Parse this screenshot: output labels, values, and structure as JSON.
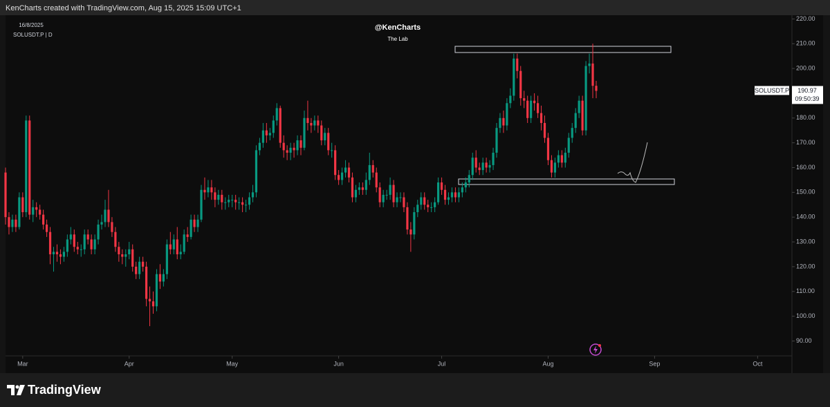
{
  "header": {
    "text": "KenCharts created with TradingView.com, Aug 15, 2025 15:09 UTC+1"
  },
  "footer": {
    "brand": "TradingView"
  },
  "chart_data": {
    "type": "candlestick",
    "title": "@KenCharts",
    "subtitle": "The Lab",
    "date": "16/8/2025",
    "symbol": "SOLUSDT.P | D",
    "price_tag": {
      "symbol": "SOLUSDT.P",
      "countdown": "09:50:39"
    },
    "up_color": "#089981",
    "down_color": "#f23645",
    "grid": false,
    "ylim": [
      84,
      221.5
    ],
    "yticks": [
      {
        "value": 90,
        "label": "90.00"
      },
      {
        "value": 100,
        "label": "100.00"
      },
      {
        "value": 110,
        "label": "110.00"
      },
      {
        "value": 120,
        "label": "120.00"
      },
      {
        "value": 130,
        "label": "130.00"
      },
      {
        "value": 140,
        "label": "140.00"
      },
      {
        "value": 150,
        "label": "150.00"
      },
      {
        "value": 160,
        "label": "160.00"
      },
      {
        "value": 170,
        "label": "170.00"
      },
      {
        "value": 180,
        "label": "180.00"
      },
      {
        "value": 190,
        "label": "190.00"
      },
      {
        "value": 200,
        "label": "200.00"
      },
      {
        "value": 210,
        "label": "210.00"
      },
      {
        "value": 220,
        "label": "220.00"
      }
    ],
    "xlim": [
      "2025-02-24",
      "2025-10-11"
    ],
    "xticks": [
      {
        "value": "2025-03-01",
        "label": "Mar"
      },
      {
        "value": "2025-04-01",
        "label": "Apr"
      },
      {
        "value": "2025-05-01",
        "label": "May"
      },
      {
        "value": "2025-06-01",
        "label": "Jun"
      },
      {
        "value": "2025-07-01",
        "label": "Jul"
      },
      {
        "value": "2025-08-01",
        "label": "Aug"
      },
      {
        "value": "2025-09-01",
        "label": "Sep"
      },
      {
        "value": "2025-10-01",
        "label": "Oct"
      }
    ],
    "x": [
      "2025-02-24",
      "2025-02-25",
      "2025-02-26",
      "2025-02-27",
      "2025-02-28",
      "2025-03-01",
      "2025-03-02",
      "2025-03-03",
      "2025-03-04",
      "2025-03-05",
      "2025-03-06",
      "2025-03-07",
      "2025-03-08",
      "2025-03-09",
      "2025-03-10",
      "2025-03-11",
      "2025-03-12",
      "2025-03-13",
      "2025-03-14",
      "2025-03-15",
      "2025-03-16",
      "2025-03-17",
      "2025-03-18",
      "2025-03-19",
      "2025-03-20",
      "2025-03-21",
      "2025-03-22",
      "2025-03-23",
      "2025-03-24",
      "2025-03-25",
      "2025-03-26",
      "2025-03-27",
      "2025-03-28",
      "2025-03-29",
      "2025-03-30",
      "2025-03-31",
      "2025-04-01",
      "2025-04-02",
      "2025-04-03",
      "2025-04-04",
      "2025-04-05",
      "2025-04-06",
      "2025-04-07",
      "2025-04-08",
      "2025-04-09",
      "2025-04-10",
      "2025-04-11",
      "2025-04-12",
      "2025-04-13",
      "2025-04-14",
      "2025-04-15",
      "2025-04-16",
      "2025-04-17",
      "2025-04-18",
      "2025-04-19",
      "2025-04-20",
      "2025-04-21",
      "2025-04-22",
      "2025-04-23",
      "2025-04-24",
      "2025-04-25",
      "2025-04-26",
      "2025-04-27",
      "2025-04-28",
      "2025-04-29",
      "2025-04-30",
      "2025-05-01",
      "2025-05-02",
      "2025-05-03",
      "2025-05-04",
      "2025-05-05",
      "2025-05-06",
      "2025-05-07",
      "2025-05-08",
      "2025-05-09",
      "2025-05-10",
      "2025-05-11",
      "2025-05-12",
      "2025-05-13",
      "2025-05-14",
      "2025-05-15",
      "2025-05-16",
      "2025-05-17",
      "2025-05-18",
      "2025-05-19",
      "2025-05-20",
      "2025-05-21",
      "2025-05-22",
      "2025-05-23",
      "2025-05-24",
      "2025-05-25",
      "2025-05-26",
      "2025-05-27",
      "2025-05-28",
      "2025-05-29",
      "2025-05-30",
      "2025-05-31",
      "2025-06-01",
      "2025-06-02",
      "2025-06-03",
      "2025-06-04",
      "2025-06-05",
      "2025-06-06",
      "2025-06-07",
      "2025-06-08",
      "2025-06-09",
      "2025-06-10",
      "2025-06-11",
      "2025-06-12",
      "2025-06-13",
      "2025-06-14",
      "2025-06-15",
      "2025-06-16",
      "2025-06-17",
      "2025-06-18",
      "2025-06-19",
      "2025-06-20",
      "2025-06-21",
      "2025-06-22",
      "2025-06-23",
      "2025-06-24",
      "2025-06-25",
      "2025-06-26",
      "2025-06-27",
      "2025-06-28",
      "2025-06-29",
      "2025-06-30",
      "2025-07-01",
      "2025-07-02",
      "2025-07-03",
      "2025-07-04",
      "2025-07-05",
      "2025-07-06",
      "2025-07-07",
      "2025-07-08",
      "2025-07-09",
      "2025-07-10",
      "2025-07-11",
      "2025-07-12",
      "2025-07-13",
      "2025-07-14",
      "2025-07-15",
      "2025-07-16",
      "2025-07-17",
      "2025-07-18",
      "2025-07-19",
      "2025-07-20",
      "2025-07-21",
      "2025-07-22",
      "2025-07-23",
      "2025-07-24",
      "2025-07-25",
      "2025-07-26",
      "2025-07-27",
      "2025-07-28",
      "2025-07-29",
      "2025-07-30",
      "2025-07-31",
      "2025-08-01",
      "2025-08-02",
      "2025-08-03",
      "2025-08-04",
      "2025-08-05",
      "2025-08-06",
      "2025-08-07",
      "2025-08-08",
      "2025-08-09",
      "2025-08-10",
      "2025-08-11",
      "2025-08-12",
      "2025-08-13",
      "2025-08-14",
      "2025-08-15"
    ],
    "open": [
      158,
      140,
      136,
      139,
      136,
      148,
      142,
      179,
      141,
      144,
      143,
      141,
      137,
      134,
      125,
      126,
      125,
      124,
      126,
      131,
      133,
      128,
      127,
      127,
      133,
      131,
      127,
      131,
      137,
      138,
      143,
      138,
      134,
      128,
      125,
      124,
      125,
      127,
      120,
      117,
      122,
      120,
      107,
      106,
      104,
      117,
      114,
      117,
      129,
      127,
      131,
      125,
      126,
      133,
      132,
      139,
      136,
      139,
      151,
      150,
      152,
      150,
      147,
      149,
      146,
      146,
      147,
      147,
      146,
      146,
      145,
      145,
      148,
      150,
      167,
      170,
      175,
      173,
      174,
      179,
      184,
      170,
      167,
      166,
      168,
      167,
      171,
      168,
      180,
      178,
      177,
      179,
      177,
      171,
      174,
      167,
      167,
      157,
      155,
      158,
      160,
      156,
      148,
      151,
      152,
      151,
      155,
      161,
      158,
      152,
      146,
      149,
      149,
      153,
      146,
      148,
      148,
      144,
      135,
      133,
      142,
      145,
      148,
      145,
      144,
      144,
      146,
      154,
      151,
      147,
      148,
      150,
      148,
      150,
      152,
      154,
      157,
      164,
      160,
      159,
      162,
      160,
      161,
      166,
      176,
      180,
      177,
      186,
      189,
      204,
      199,
      188,
      187,
      180,
      187,
      186,
      182,
      178,
      172,
      163,
      158,
      162,
      165,
      162,
      166,
      172,
      176,
      182,
      187,
      175,
      201,
      202,
      193
    ],
    "high": [
      160,
      142,
      141,
      141,
      150,
      150,
      181,
      181,
      147,
      146,
      145,
      143,
      139,
      136,
      128,
      129,
      127,
      128,
      133,
      136,
      135,
      130,
      129,
      135,
      135,
      133,
      133,
      139,
      141,
      147,
      151,
      140,
      136,
      130,
      127,
      127,
      130,
      129,
      122,
      124,
      124,
      122,
      112,
      110,
      119,
      121,
      119,
      131,
      134,
      133,
      136,
      129,
      135,
      136,
      141,
      141,
      141,
      153,
      156,
      155,
      155,
      152,
      151,
      151,
      148,
      149,
      149,
      149,
      148,
      148,
      147,
      150,
      153,
      169,
      172,
      178,
      178,
      176,
      181,
      186,
      185,
      173,
      169,
      170,
      170,
      173,
      173,
      183,
      187,
      180,
      181,
      181,
      179,
      176,
      176,
      170,
      169,
      159,
      160,
      163,
      162,
      158,
      153,
      154,
      154,
      158,
      166,
      163,
      160,
      154,
      151,
      151,
      156,
      155,
      150,
      150,
      150,
      146,
      138,
      144,
      147,
      150,
      150,
      147,
      146,
      148,
      156,
      156,
      153,
      150,
      152,
      152,
      152,
      154,
      156,
      159,
      166,
      167,
      162,
      164,
      164,
      163,
      168,
      178,
      182,
      183,
      188,
      192,
      206,
      206,
      201,
      191,
      189,
      189,
      190,
      189,
      185,
      181,
      174,
      165,
      164,
      167,
      167,
      168,
      174,
      178,
      184,
      189,
      189,
      203,
      206,
      210,
      195
    ],
    "low": [
      137,
      133,
      134,
      134,
      135,
      140,
      140,
      139,
      138,
      140,
      139,
      135,
      132,
      121,
      118,
      122,
      121,
      122,
      124,
      129,
      126,
      125,
      124,
      125,
      129,
      125,
      125,
      129,
      135,
      136,
      136,
      132,
      126,
      122,
      121,
      120,
      123,
      118,
      115,
      115,
      118,
      104,
      96,
      101,
      102,
      111,
      112,
      115,
      125,
      125,
      123,
      123,
      125,
      130,
      131,
      134,
      134,
      138,
      147,
      148,
      147,
      144,
      145,
      143,
      143,
      144,
      144,
      143,
      143,
      142,
      142,
      143,
      146,
      148,
      165,
      168,
      170,
      171,
      172,
      177,
      168,
      164,
      163,
      163,
      164,
      165,
      165,
      167,
      175,
      174,
      175,
      174,
      169,
      169,
      165,
      164,
      155,
      153,
      153,
      156,
      154,
      146,
      146,
      149,
      149,
      149,
      153,
      156,
      150,
      144,
      144,
      147,
      147,
      144,
      144,
      146,
      142,
      133,
      126,
      131,
      140,
      143,
      143,
      142,
      142,
      142,
      145,
      149,
      145,
      145,
      146,
      146,
      146,
      148,
      150,
      152,
      155,
      158,
      157,
      157,
      158,
      158,
      159,
      164,
      174,
      174,
      175,
      184,
      187,
      196,
      185,
      184,
      178,
      178,
      183,
      180,
      175,
      170,
      161,
      156,
      156,
      160,
      160,
      160,
      164,
      170,
      174,
      180,
      173,
      173,
      198,
      188,
      188
    ],
    "close": [
      140,
      136,
      139,
      136,
      148,
      142,
      179,
      141,
      144,
      143,
      141,
      137,
      134,
      125,
      126,
      125,
      124,
      126,
      131,
      133,
      128,
      127,
      127,
      133,
      131,
      127,
      131,
      137,
      138,
      143,
      138,
      134,
      128,
      125,
      124,
      125,
      127,
      120,
      117,
      122,
      120,
      107,
      106,
      104,
      117,
      114,
      117,
      129,
      127,
      131,
      125,
      126,
      133,
      132,
      139,
      136,
      139,
      151,
      150,
      152,
      150,
      147,
      149,
      146,
      146,
      147,
      147,
      146,
      146,
      145,
      145,
      148,
      150,
      167,
      170,
      175,
      173,
      174,
      179,
      184,
      170,
      167,
      166,
      168,
      167,
      171,
      168,
      180,
      178,
      177,
      179,
      177,
      171,
      174,
      167,
      167,
      157,
      155,
      158,
      160,
      156,
      148,
      151,
      152,
      151,
      155,
      161,
      158,
      152,
      146,
      149,
      149,
      153,
      146,
      148,
      148,
      144,
      135,
      133,
      142,
      145,
      148,
      145,
      144,
      144,
      146,
      154,
      151,
      147,
      148,
      150,
      148,
      150,
      152,
      154,
      157,
      164,
      160,
      159,
      162,
      160,
      161,
      166,
      176,
      180,
      177,
      186,
      189,
      204,
      199,
      188,
      187,
      180,
      187,
      186,
      182,
      178,
      172,
      163,
      158,
      162,
      165,
      162,
      166,
      172,
      176,
      182,
      187,
      175,
      201,
      202,
      193,
      190.97
    ]
  }
}
